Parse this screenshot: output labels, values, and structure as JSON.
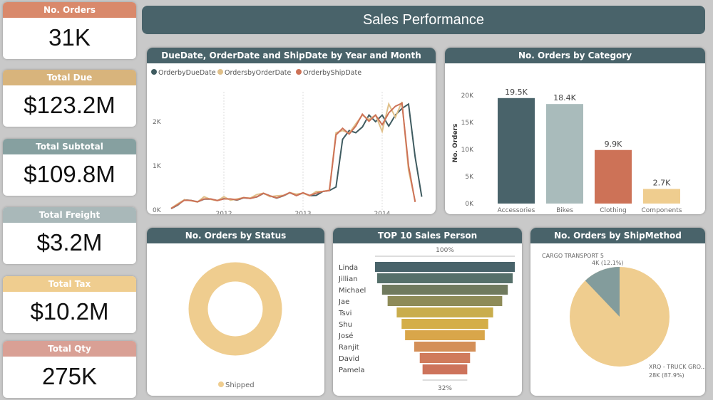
{
  "title": "Sales Performance",
  "kpis": [
    {
      "label": "No. Orders",
      "value": "31K",
      "color": "#d9896b"
    },
    {
      "label": "Total Due",
      "value": "$123.2M",
      "color": "#d8b47c"
    },
    {
      "label": "Total Subtotal",
      "value": "$109.8M",
      "color": "#86a0a0"
    },
    {
      "label": "Total Freight",
      "value": "$3.2M",
      "color": "#a9b8b9"
    },
    {
      "label": "Total Tax",
      "value": "$10.2M",
      "color": "#efcd8f"
    },
    {
      "label": "Total Qty",
      "value": "275K",
      "color": "#d9a095"
    }
  ],
  "chart_data": [
    {
      "type": "line",
      "title": "DueDate, OrderDate and ShipDate by Year and Month",
      "x_start": "2011-05",
      "x_ticks": [
        "2012",
        "2013",
        "2014"
      ],
      "y_ticks": [
        "0K",
        "1K",
        "2K"
      ],
      "ylim": [
        0,
        2600
      ],
      "legend": "top-left",
      "series": [
        {
          "name": "OrderbyDueDate",
          "color": "#3f5b60",
          "values": [
            30,
            110,
            230,
            215,
            185,
            245,
            245,
            215,
            255,
            245,
            225,
            275,
            265,
            295,
            375,
            320,
            270,
            320,
            390,
            330,
            385,
            325,
            330,
            420,
            440,
            520,
            1600,
            1800,
            1750,
            1880,
            2150,
            2000,
            2150,
            1900,
            2150,
            2300,
            2400,
            1200,
            300
          ]
        },
        {
          "name": "OrdersbyOrderDate",
          "color": "#e0c08a",
          "values": [
            40,
            140,
            230,
            210,
            180,
            300,
            240,
            210,
            300,
            220,
            250,
            280,
            270,
            350,
            380,
            300,
            320,
            330,
            390,
            360,
            380,
            320,
            420,
            420,
            450,
            1750,
            1800,
            1740,
            1950,
            2150,
            2050,
            2150,
            1780,
            2400,
            2100,
            2450,
            900,
            200
          ]
        },
        {
          "name": "OrderbyShipDate",
          "color": "#cd7257",
          "values": [
            35,
            120,
            220,
            215,
            185,
            250,
            250,
            215,
            250,
            250,
            230,
            280,
            260,
            300,
            380,
            320,
            275,
            325,
            395,
            325,
            390,
            330,
            380,
            420,
            440,
            1700,
            1850,
            1720,
            1900,
            2170,
            2010,
            2150,
            1930,
            2200,
            2350,
            2420,
            1000,
            180
          ]
        }
      ]
    },
    {
      "type": "bar",
      "title": "No. Orders by Category",
      "xlabel": "Category",
      "ylabel": "No. Orders",
      "ylim": [
        0,
        20000
      ],
      "y_ticks": [
        "0K",
        "5K",
        "10K",
        "15K",
        "20K"
      ],
      "categories": [
        "Accessories",
        "Bikes",
        "Clothing",
        "Components"
      ],
      "values": [
        19500,
        18400,
        9900,
        2700
      ],
      "labels": [
        "19.5K",
        "18.4K",
        "9.9K",
        "2.7K"
      ],
      "colors": [
        "#49636a",
        "#a9bbbb",
        "#cd7257",
        "#efcd8f"
      ]
    },
    {
      "type": "pie",
      "donut": true,
      "title": "No. Orders by Status",
      "categories": [
        "Shipped"
      ],
      "values": [
        100
      ],
      "colors": [
        "#efcd8f"
      ],
      "legend": "bottom"
    },
    {
      "type": "bar",
      "subtype": "funnel",
      "title": "TOP 10 Sales Person",
      "top_label": "100%",
      "bottom_label": "32%",
      "categories": [
        "Linda",
        "Jillian",
        "Michael",
        "Jae",
        "Tsvi",
        "Shu",
        "José",
        "Ranjit",
        "David",
        "Pamela"
      ],
      "values": [
        100,
        97,
        90,
        82,
        69,
        62,
        57,
        44,
        36,
        32
      ],
      "colors": [
        "#49636a",
        "#56706a",
        "#707a5e",
        "#8e8b58",
        "#c9ad4c",
        "#d4ae48",
        "#d9a64a",
        "#d48f58",
        "#d07b5c",
        "#cd735b"
      ]
    },
    {
      "type": "pie",
      "title": "No. Orders by ShipMethod",
      "categories": [
        "CARGO TRANSPORT 5",
        "XRQ - TRUCK GRO..."
      ],
      "values": [
        12.1,
        87.9
      ],
      "labels": [
        "4K (12.1%)",
        "28K (87.9%)"
      ],
      "colors": [
        "#839c9c",
        "#efcd8f"
      ]
    }
  ]
}
